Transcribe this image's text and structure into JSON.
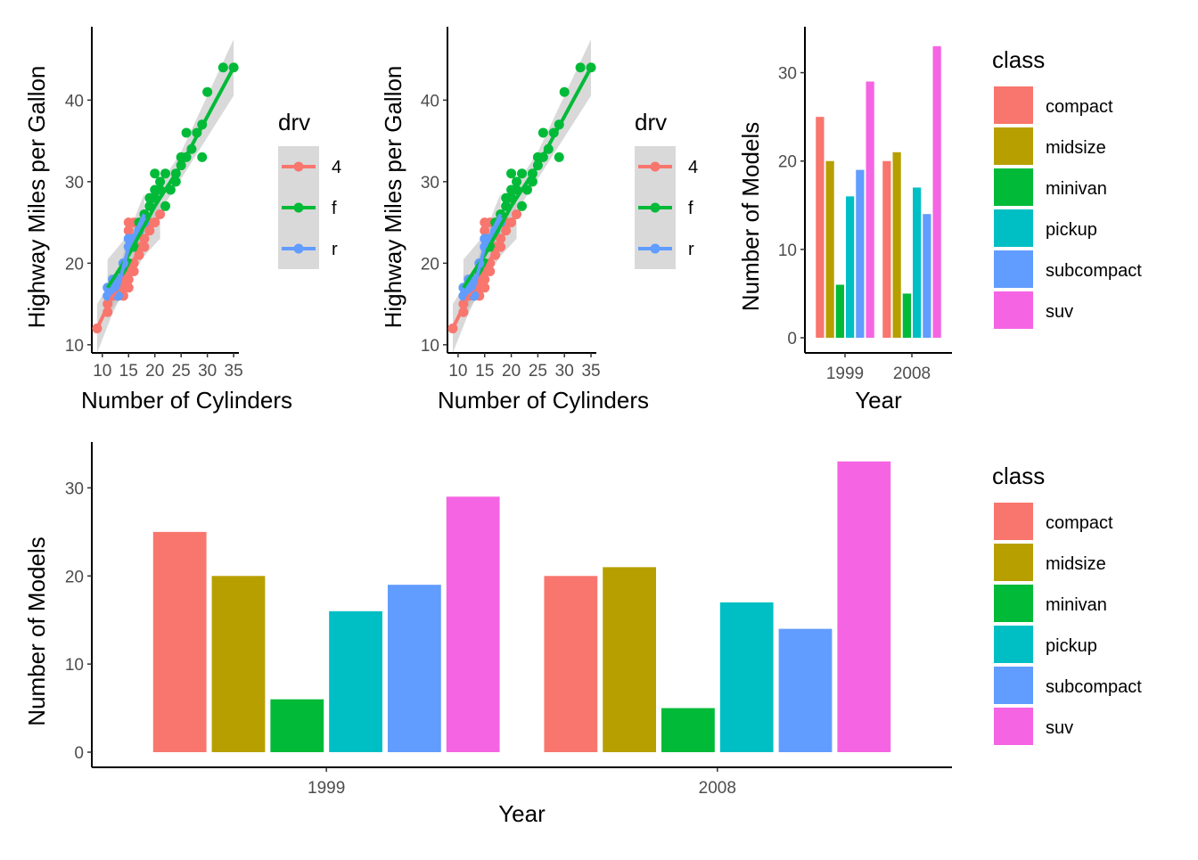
{
  "chart_data": [
    {
      "type": "scatter",
      "xlabel": "Number of Cylinders",
      "ylabel": "Highway Miles per Gallon",
      "xlim": [
        8,
        36
      ],
      "ylim": [
        9,
        49
      ],
      "xticks": [
        10,
        15,
        20,
        25,
        30,
        35
      ],
      "yticks": [
        10,
        20,
        30,
        40
      ],
      "legend": {
        "title": "drv",
        "placement": "right",
        "entries": [
          "4",
          "f",
          "r"
        ]
      },
      "colors": {
        "4": "#F8766D",
        "f": "#00BA38",
        "r": "#619CFF",
        "band": "#bfbfbf"
      },
      "series": [
        {
          "name": "4",
          "points": [
            [
              9,
              12
            ],
            [
              11,
              14
            ],
            [
              11,
              15
            ],
            [
              12,
              16
            ],
            [
              13,
              16
            ],
            [
              14,
              16
            ],
            [
              14,
              17
            ],
            [
              15,
              17
            ],
            [
              15,
              18
            ],
            [
              15,
              19
            ],
            [
              16,
              19
            ],
            [
              16,
              20
            ],
            [
              17,
              21
            ],
            [
              17,
              22
            ],
            [
              18,
              22
            ],
            [
              18,
              23
            ],
            [
              19,
              24
            ],
            [
              19,
              25
            ],
            [
              20,
              25
            ],
            [
              21,
              26
            ],
            [
              15,
              24
            ],
            [
              15,
              25
            ],
            [
              16,
              25
            ],
            [
              14,
              18
            ],
            [
              13,
              17
            ]
          ],
          "fit": [
            [
              9,
              12
            ],
            [
              12,
              16
            ],
            [
              15,
              19
            ],
            [
              18,
              23
            ],
            [
              21,
              26
            ]
          ]
        },
        {
          "name": "f",
          "points": [
            [
              12,
              17
            ],
            [
              13,
              18
            ],
            [
              14,
              19
            ],
            [
              15,
              20
            ],
            [
              16,
              22
            ],
            [
              16,
              23
            ],
            [
              17,
              24
            ],
            [
              17,
              25
            ],
            [
              18,
              25
            ],
            [
              18,
              26
            ],
            [
              19,
              27
            ],
            [
              19,
              28
            ],
            [
              20,
              28
            ],
            [
              20,
              29
            ],
            [
              21,
              29
            ],
            [
              21,
              30
            ],
            [
              22,
              27
            ],
            [
              23,
              29
            ],
            [
              24,
              30
            ],
            [
              24,
              31
            ],
            [
              25,
              32
            ],
            [
              25,
              33
            ],
            [
              26,
              33
            ],
            [
              26,
              36
            ],
            [
              27,
              34
            ],
            [
              28,
              36
            ],
            [
              29,
              37
            ],
            [
              29,
              33
            ],
            [
              30,
              41
            ],
            [
              33,
              44
            ],
            [
              35,
              44
            ],
            [
              20,
              31
            ],
            [
              22,
              31
            ]
          ],
          "fit": [
            [
              11,
              17
            ],
            [
              15,
              21
            ],
            [
              20,
              27
            ],
            [
              25,
              32
            ],
            [
              30,
              38
            ],
            [
              35,
              44
            ]
          ]
        },
        {
          "name": "r",
          "points": [
            [
              11,
              16
            ],
            [
              11,
              17
            ],
            [
              12,
              17
            ],
            [
              12,
              18
            ],
            [
              13,
              16
            ],
            [
              13,
              18
            ],
            [
              14,
              20
            ],
            [
              15,
              22
            ],
            [
              15,
              23
            ],
            [
              16,
              23
            ],
            [
              17,
              24
            ],
            [
              18,
              25
            ]
          ],
          "fit": [
            [
              11,
              16
            ],
            [
              13,
              17
            ],
            [
              15,
              22
            ],
            [
              18,
              26
            ]
          ]
        }
      ]
    },
    {
      "type": "scatter",
      "xlabel": "Number of Cylinders",
      "ylabel": "Highway Miles per Gallon",
      "xlim": [
        8,
        36
      ],
      "ylim": [
        9,
        49
      ],
      "xticks": [
        10,
        15,
        20,
        25,
        30,
        35
      ],
      "yticks": [
        10,
        20,
        30,
        40
      ],
      "legend": {
        "title": "drv",
        "placement": "right",
        "entries": [
          "4",
          "f",
          "r"
        ]
      },
      "colors": {
        "4": "#F8766D",
        "f": "#00BA38",
        "r": "#619CFF",
        "band": "#bfbfbf"
      },
      "series": [
        {
          "name": "4",
          "points": [
            [
              9,
              12
            ],
            [
              11,
              14
            ],
            [
              11,
              15
            ],
            [
              12,
              16
            ],
            [
              13,
              16
            ],
            [
              14,
              16
            ],
            [
              14,
              17
            ],
            [
              15,
              17
            ],
            [
              15,
              18
            ],
            [
              15,
              19
            ],
            [
              16,
              19
            ],
            [
              16,
              20
            ],
            [
              17,
              21
            ],
            [
              17,
              22
            ],
            [
              18,
              22
            ],
            [
              18,
              23
            ],
            [
              19,
              24
            ],
            [
              19,
              25
            ],
            [
              20,
              25
            ],
            [
              21,
              26
            ],
            [
              15,
              24
            ],
            [
              15,
              25
            ],
            [
              16,
              25
            ],
            [
              14,
              18
            ],
            [
              13,
              17
            ]
          ],
          "fit": [
            [
              9,
              12
            ],
            [
              12,
              16
            ],
            [
              15,
              19
            ],
            [
              18,
              23
            ],
            [
              21,
              26
            ]
          ]
        },
        {
          "name": "f",
          "points": [
            [
              12,
              17
            ],
            [
              13,
              18
            ],
            [
              14,
              19
            ],
            [
              15,
              20
            ],
            [
              16,
              22
            ],
            [
              16,
              23
            ],
            [
              17,
              24
            ],
            [
              17,
              25
            ],
            [
              18,
              25
            ],
            [
              18,
              26
            ],
            [
              19,
              27
            ],
            [
              19,
              28
            ],
            [
              20,
              28
            ],
            [
              20,
              29
            ],
            [
              21,
              29
            ],
            [
              21,
              30
            ],
            [
              22,
              27
            ],
            [
              23,
              29
            ],
            [
              24,
              30
            ],
            [
              24,
              31
            ],
            [
              25,
              32
            ],
            [
              25,
              33
            ],
            [
              26,
              33
            ],
            [
              26,
              36
            ],
            [
              27,
              34
            ],
            [
              28,
              36
            ],
            [
              29,
              37
            ],
            [
              29,
              33
            ],
            [
              30,
              41
            ],
            [
              33,
              44
            ],
            [
              35,
              44
            ],
            [
              20,
              31
            ],
            [
              22,
              31
            ]
          ],
          "fit": [
            [
              11,
              17
            ],
            [
              15,
              21
            ],
            [
              20,
              27
            ],
            [
              25,
              32
            ],
            [
              30,
              38
            ],
            [
              35,
              44
            ]
          ]
        },
        {
          "name": "r",
          "points": [
            [
              11,
              16
            ],
            [
              11,
              17
            ],
            [
              12,
              17
            ],
            [
              12,
              18
            ],
            [
              13,
              16
            ],
            [
              13,
              18
            ],
            [
              14,
              20
            ],
            [
              15,
              22
            ],
            [
              15,
              23
            ],
            [
              16,
              23
            ],
            [
              17,
              24
            ],
            [
              18,
              25
            ]
          ],
          "fit": [
            [
              11,
              16
            ],
            [
              13,
              17
            ],
            [
              15,
              22
            ],
            [
              18,
              26
            ]
          ]
        }
      ]
    },
    {
      "type": "bar",
      "xlabel": "Year",
      "ylabel": "Number of Models",
      "categories": [
        "1999",
        "2008"
      ],
      "ylim": [
        0,
        35
      ],
      "yticks": [
        0,
        10,
        20,
        30
      ],
      "legend": {
        "title": "class",
        "placement": "right"
      },
      "series": [
        {
          "name": "compact",
          "color": "#F8766D",
          "values": [
            25,
            20
          ]
        },
        {
          "name": "midsize",
          "color": "#B79F00",
          "values": [
            20,
            21
          ]
        },
        {
          "name": "minivan",
          "color": "#00BA38",
          "values": [
            6,
            5
          ]
        },
        {
          "name": "pickup",
          "color": "#00BFC4",
          "values": [
            16,
            17
          ]
        },
        {
          "name": "subcompact",
          "color": "#619CFF",
          "values": [
            19,
            14
          ]
        },
        {
          "name": "suv",
          "color": "#F564E3",
          "values": [
            29,
            33
          ]
        }
      ]
    },
    {
      "type": "bar",
      "xlabel": "Year",
      "ylabel": "Number of Models",
      "categories": [
        "1999",
        "2008"
      ],
      "ylim": [
        0,
        35
      ],
      "yticks": [
        0,
        10,
        20,
        30
      ],
      "legend": {
        "title": "class",
        "placement": "right"
      },
      "series": [
        {
          "name": "compact",
          "color": "#F8766D",
          "values": [
            25,
            20
          ]
        },
        {
          "name": "midsize",
          "color": "#B79F00",
          "values": [
            20,
            21
          ]
        },
        {
          "name": "minivan",
          "color": "#00BA38",
          "values": [
            6,
            5
          ]
        },
        {
          "name": "pickup",
          "color": "#00BFC4",
          "values": [
            16,
            17
          ]
        },
        {
          "name": "subcompact",
          "color": "#619CFF",
          "values": [
            19,
            14
          ]
        },
        {
          "name": "suv",
          "color": "#F564E3",
          "values": [
            29,
            33
          ]
        }
      ]
    }
  ]
}
